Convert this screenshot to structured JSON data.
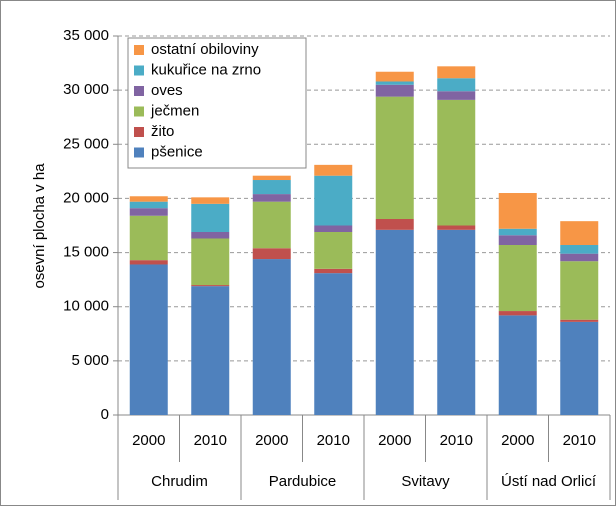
{
  "chart_data": {
    "type": "bar",
    "stacked": true,
    "y_label": "osevní plocha v ha",
    "categories": [
      "2000",
      "2010",
      "2000",
      "2010",
      "2000",
      "2010",
      "2000",
      "2010"
    ],
    "groups": [
      "Chrudim",
      "Pardubice",
      "Svitavy",
      "Ústí nad Orlicí"
    ],
    "series": [
      {
        "name": "pšenice",
        "color": "#4f81bd",
        "values": [
          13900,
          11900,
          14400,
          13100,
          17100,
          17100,
          9200,
          8600
        ]
      },
      {
        "name": "žito",
        "color": "#c0504d",
        "values": [
          400,
          100,
          1000,
          400,
          1000,
          400,
          400,
          200
        ]
      },
      {
        "name": "ječmen",
        "color": "#9bbb59",
        "values": [
          4100,
          4300,
          4300,
          3400,
          11300,
          11600,
          6100,
          5400
        ]
      },
      {
        "name": "oves",
        "color": "#8064a2",
        "values": [
          700,
          600,
          700,
          600,
          1100,
          800,
          900,
          700
        ]
      },
      {
        "name": "kukuřice na zrno",
        "color": "#4bacc6",
        "values": [
          600,
          2600,
          1300,
          4600,
          300,
          1200,
          600,
          800
        ]
      },
      {
        "name": "ostatní obiloviny",
        "color": "#f79646",
        "values": [
          500,
          600,
          400,
          1000,
          900,
          1100,
          3300,
          2200
        ]
      }
    ],
    "ylim": [
      0,
      35000
    ],
    "yticks": [
      0,
      {
        "value": 5000,
        "label": "5 000"
      },
      {
        "value": 10000,
        "label": "10 000"
      },
      {
        "value": 15000,
        "label": "15 000"
      },
      {
        "value": 20000,
        "label": "20 000"
      },
      {
        "value": 25000,
        "label": "25 000"
      },
      {
        "value": 30000,
        "label": "30 000"
      },
      {
        "value": 35000,
        "label": "35 000"
      }
    ],
    "grid": true
  }
}
